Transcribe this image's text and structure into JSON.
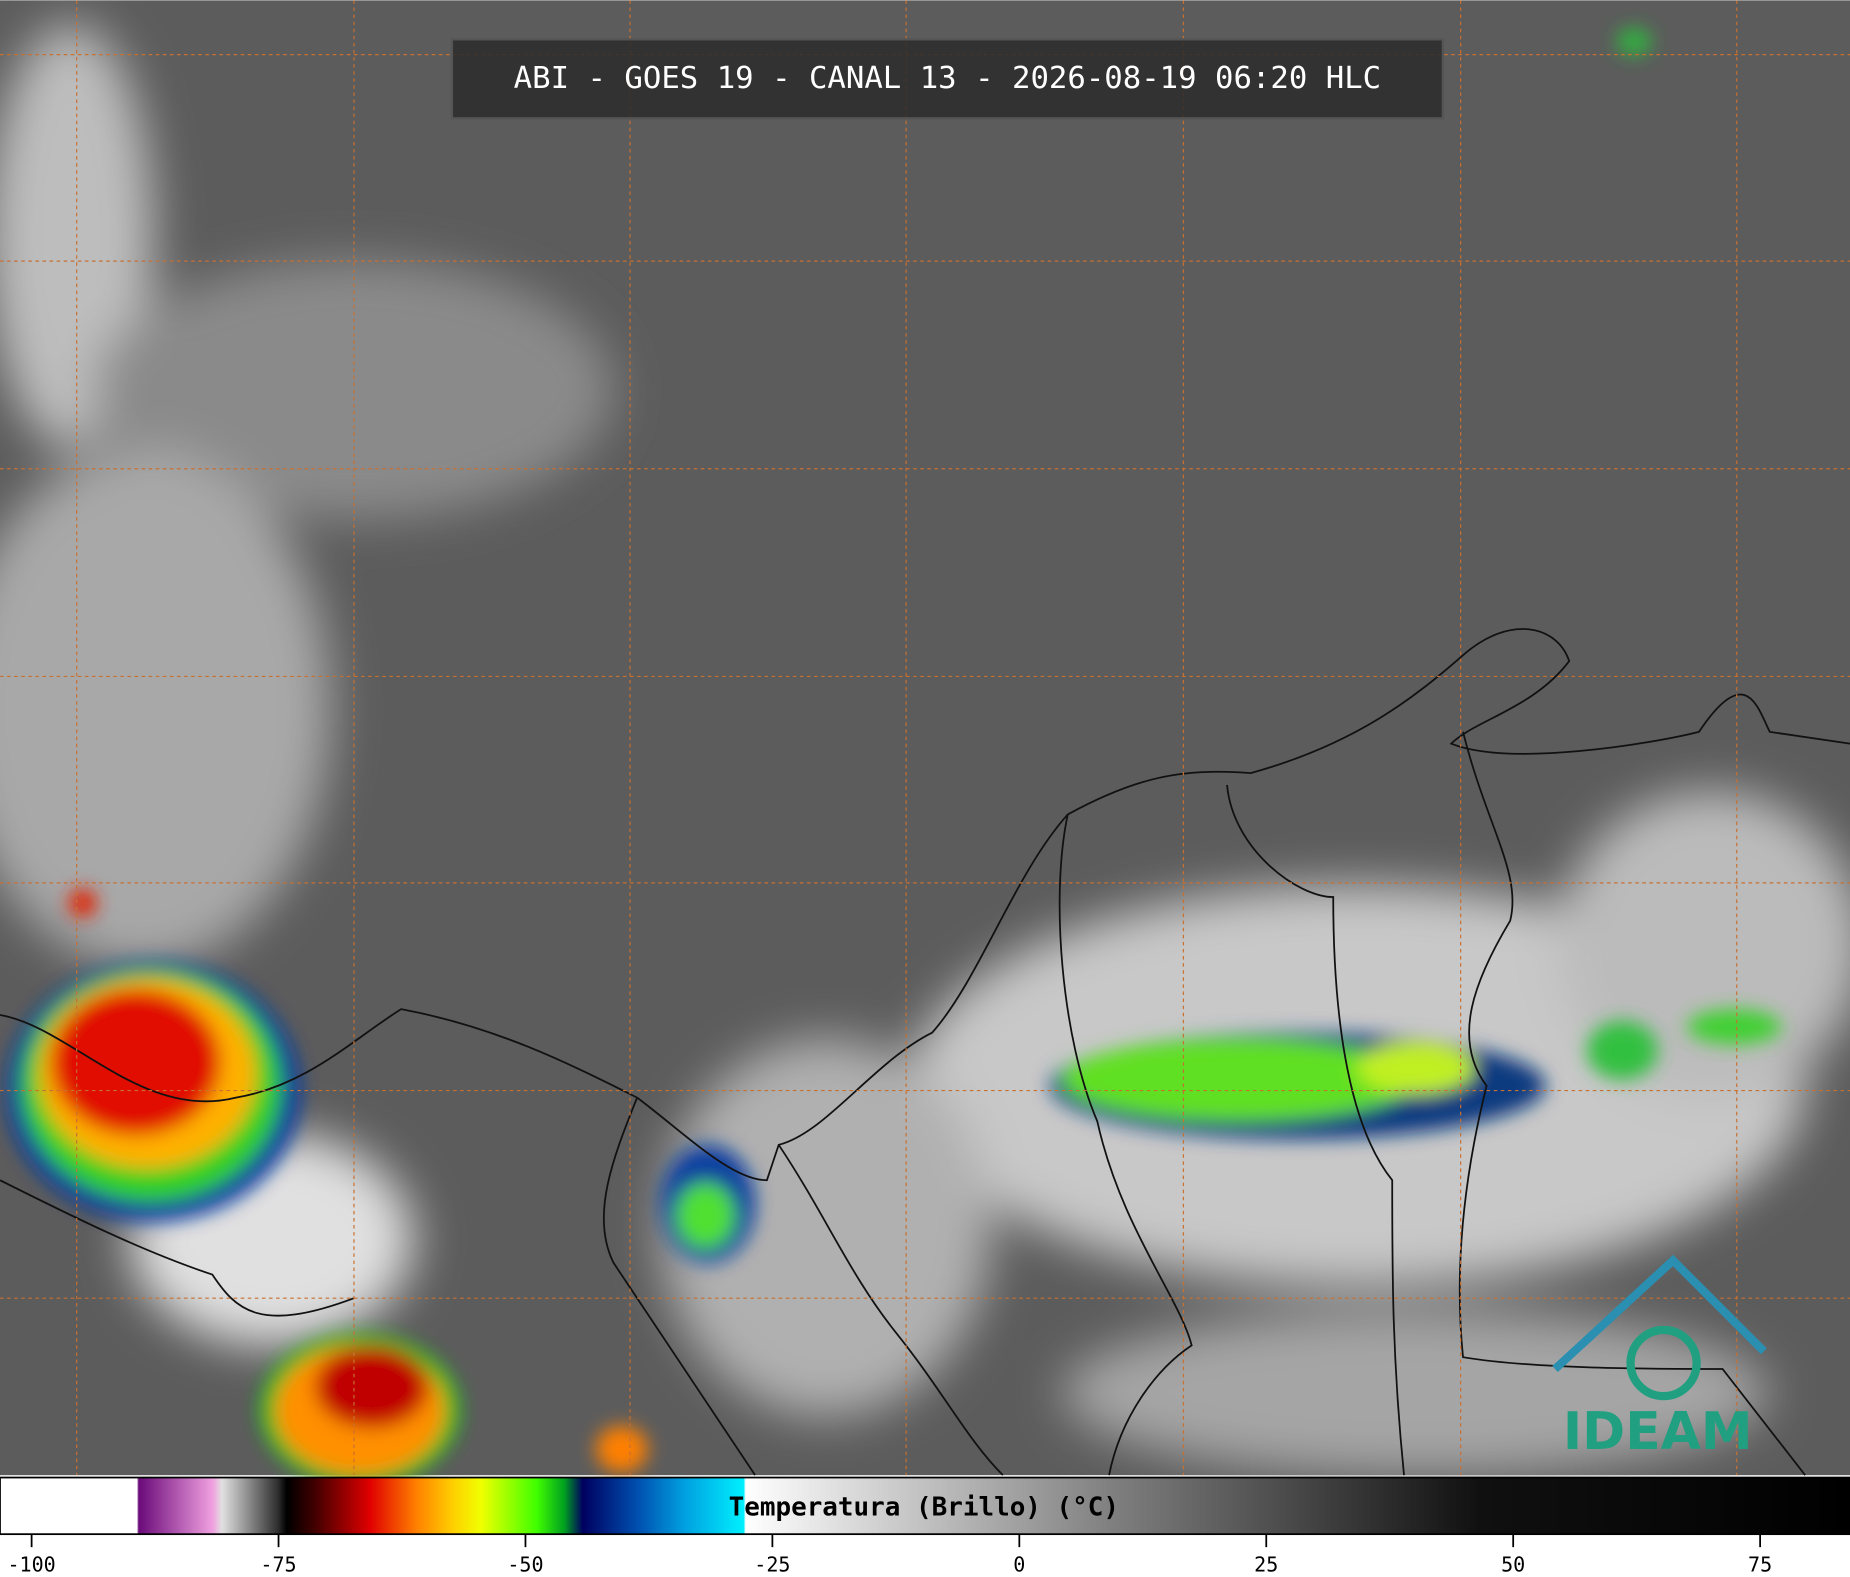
{
  "header": {
    "title": "ABI - GOES 19 - CANAL 13 - 2026-08-19 06:20 HLC"
  },
  "colorbar": {
    "label": "Temperatura (Brillo) (°C)",
    "range": [
      -103.2,
      84.1
    ],
    "ticks": [
      -100,
      -75,
      -50,
      -25,
      0,
      25,
      50,
      75
    ]
  },
  "logo": {
    "text": "IDEAM"
  }
}
